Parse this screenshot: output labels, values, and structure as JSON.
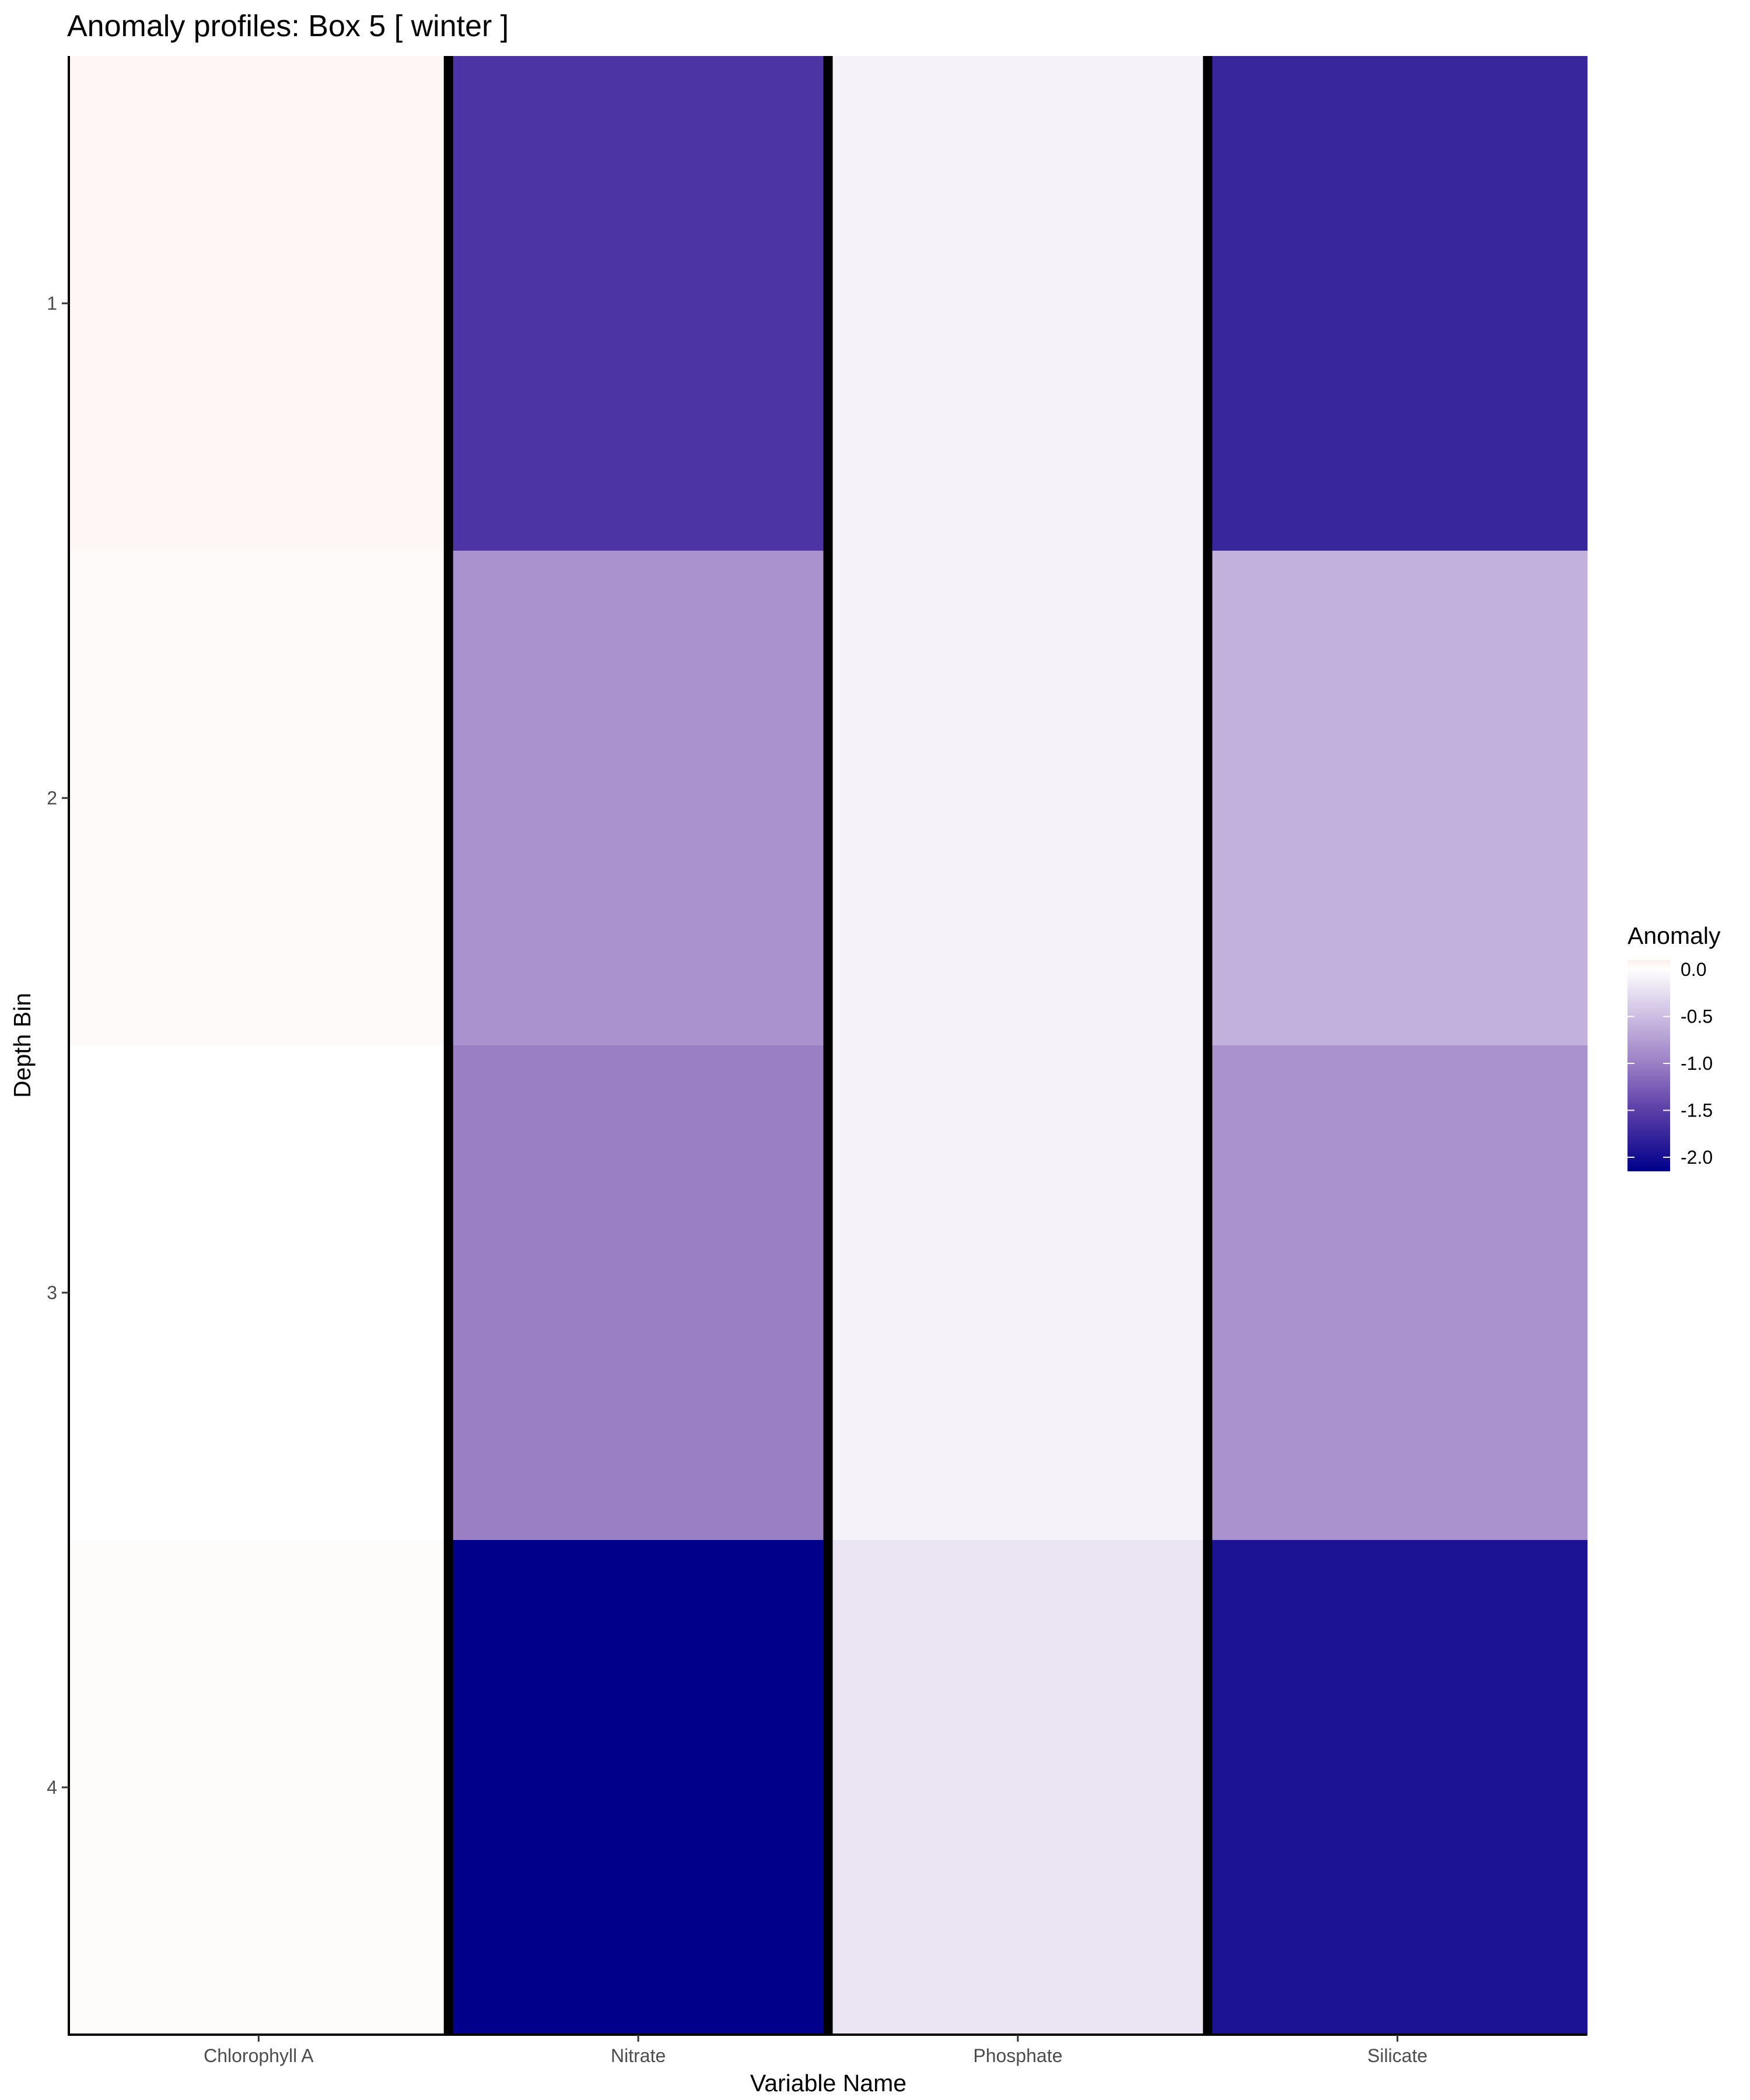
{
  "chart_data": {
    "type": "heatmap",
    "title": "Anomaly profiles: Box 5 [ winter ]",
    "xlabel": "Variable Name",
    "ylabel": "Depth Bin",
    "x_categories": [
      "Chlorophyll A",
      "Nitrate",
      "Phosphate",
      "Silicate"
    ],
    "y_categories": [
      "1",
      "2",
      "3",
      "4"
    ],
    "values": [
      [
        0.05,
        -1.6,
        -0.1,
        -1.75
      ],
      [
        0.03,
        -0.85,
        -0.1,
        -0.6
      ],
      [
        0.0,
        -1.0,
        -0.1,
        -0.85
      ],
      [
        0.02,
        -2.15,
        -0.2,
        -1.95
      ]
    ],
    "color_scale": {
      "stops": [
        {
          "value": 0.1,
          "color": "#fcefea"
        },
        {
          "value": 0.0,
          "color": "#ffffff"
        },
        {
          "value": -0.5,
          "color": "#ccbde2"
        },
        {
          "value": -1.0,
          "color": "#9b7fc5"
        },
        {
          "value": -1.5,
          "color": "#5b3ea8"
        },
        {
          "value": -2.15,
          "color": "#00008b"
        }
      ]
    },
    "legend": {
      "title": "Anomaly",
      "ticks": [
        0.0,
        -0.5,
        -1.0,
        -1.5,
        -2.0
      ],
      "tick_labels": [
        "0.0",
        "-0.5",
        "-1.0",
        "-1.5",
        "-2.0"
      ],
      "range": [
        -2.15,
        0.1
      ],
      "placement": "right"
    },
    "column_separators": true,
    "grid": false
  }
}
